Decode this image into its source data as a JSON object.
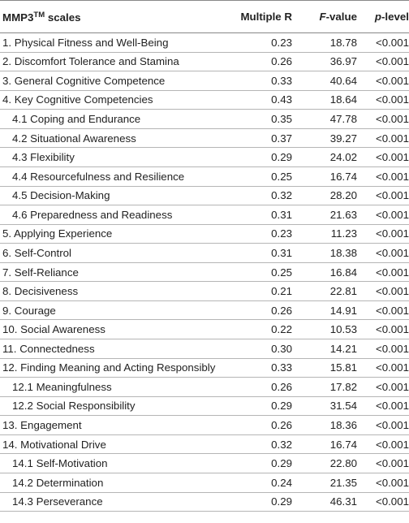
{
  "header": {
    "scales_main": "MMP3",
    "scales_sup": "TM",
    "scales_rest": " scales",
    "multiple_r": "Multiple R",
    "f_italic": "F",
    "f_rest": "-value",
    "p_italic": "p",
    "p_rest": "-level"
  },
  "rows": [
    {
      "label": "1. Physical Fitness and Well-Being",
      "r": "0.23",
      "f": "18.78",
      "p": "<0.001"
    },
    {
      "label": "2. Discomfort Tolerance and Stamina",
      "r": "0.26",
      "f": "36.97",
      "p": "<0.001"
    },
    {
      "label": "3. General Cognitive Competence",
      "r": "0.33",
      "f": "40.64",
      "p": "<0.001"
    },
    {
      "label": "4. Key Cognitive Competencies",
      "r": "0.43",
      "f": "18.64",
      "p": "<0.001"
    },
    {
      "label": "4.1 Coping and Endurance",
      "r": "0.35",
      "f": "47.78",
      "p": "<0.001"
    },
    {
      "label": "4.2 Situational Awareness",
      "r": "0.37",
      "f": "39.27",
      "p": "<0.001"
    },
    {
      "label": "4.3 Flexibility",
      "r": "0.29",
      "f": "24.02",
      "p": "<0.001"
    },
    {
      "label": "4.4 Resourcefulness and Resilience",
      "r": "0.25",
      "f": "16.74",
      "p": "<0.001"
    },
    {
      "label": "4.5 Decision-Making",
      "r": "0.32",
      "f": "28.20",
      "p": "<0.001"
    },
    {
      "label": "4.6 Preparedness and Readiness",
      "r": "0.31",
      "f": "21.63",
      "p": "<0.001"
    },
    {
      "label": "5. Applying Experience",
      "r": "0.23",
      "f": "11.23",
      "p": "<0.001"
    },
    {
      "label": "6. Self-Control",
      "r": "0.31",
      "f": "18.38",
      "p": "<0.001"
    },
    {
      "label": "7. Self-Reliance",
      "r": "0.25",
      "f": "16.84",
      "p": "<0.001"
    },
    {
      "label": "8. Decisiveness",
      "r": "0.21",
      "f": "22.81",
      "p": "<0.001"
    },
    {
      "label": "9. Courage",
      "r": "0.26",
      "f": "14.91",
      "p": "<0.001"
    },
    {
      "label": "10. Social Awareness",
      "r": "0.22",
      "f": "10.53",
      "p": "<0.001"
    },
    {
      "label": "11. Connectedness",
      "r": "0.30",
      "f": "14.21",
      "p": "<0.001"
    },
    {
      "label": "12. Finding Meaning and Acting Responsibly",
      "r": "0.33",
      "f": "15.81",
      "p": "<0.001"
    },
    {
      "label": "12.1 Meaningfulness",
      "r": "0.26",
      "f": "17.82",
      "p": "<0.001"
    },
    {
      "label": "12.2 Social Responsibility",
      "r": "0.29",
      "f": "31.54",
      "p": "<0.001"
    },
    {
      "label": "13. Engagement",
      "r": "0.26",
      "f": "18.36",
      "p": "<0.001"
    },
    {
      "label": "14. Motivational Drive",
      "r": "0.32",
      "f": "16.74",
      "p": "<0.001"
    },
    {
      "label": "14.1 Self-Motivation",
      "r": "0.29",
      "f": "22.80",
      "p": "<0.001"
    },
    {
      "label": "14.2 Determination",
      "r": "0.24",
      "f": "21.35",
      "p": "<0.001"
    },
    {
      "label": "14.3 Perseverance",
      "r": "0.29",
      "f": "46.31",
      "p": "<0.001"
    }
  ]
}
